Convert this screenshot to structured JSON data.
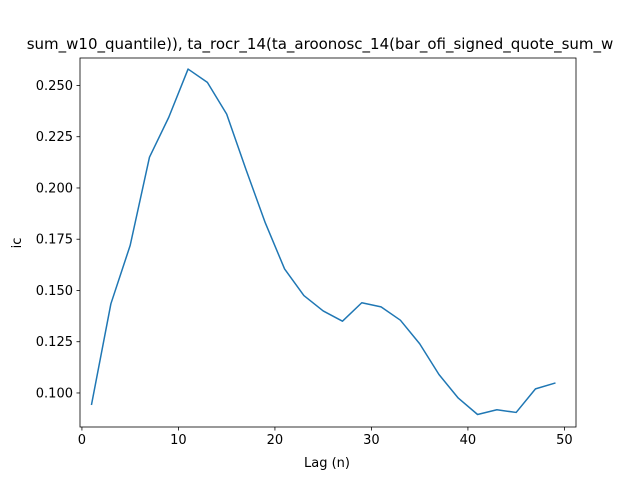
{
  "chart_data": {
    "type": "line",
    "title": "sum_w10_quantile)), ta_rocr_14(ta_aroonosc_14(bar_ofi_signed_quote_sum_w",
    "xlabel": "Lag (n)",
    "ylabel": "ic",
    "xlim": [
      -0.2,
      51.2
    ],
    "ylim": [
      0.0834,
      0.2634
    ],
    "x_ticks": [
      0,
      10,
      20,
      30,
      40,
      50
    ],
    "y_ticks": [
      0.1,
      0.125,
      0.15,
      0.175,
      0.2,
      0.225,
      0.25
    ],
    "y_tick_labels": [
      "0.100",
      "0.125",
      "0.150",
      "0.175",
      "0.200",
      "0.225",
      "0.250"
    ],
    "grid": false,
    "series": [
      {
        "color": "#1f77b4",
        "x": [
          1,
          3,
          5,
          7,
          9,
          11,
          13,
          15,
          17,
          19,
          21,
          23,
          25,
          27,
          29,
          31,
          33,
          35,
          37,
          39,
          41,
          43,
          45,
          47,
          49
        ],
        "y": [
          0.0945,
          0.1435,
          0.172,
          0.215,
          0.2345,
          0.258,
          0.2515,
          0.236,
          0.209,
          0.183,
          0.1605,
          0.1475,
          0.14,
          0.135,
          0.144,
          0.142,
          0.1355,
          0.124,
          0.109,
          0.0975,
          0.0895,
          0.0918,
          0.0905,
          0.102,
          0.1048
        ]
      }
    ]
  }
}
